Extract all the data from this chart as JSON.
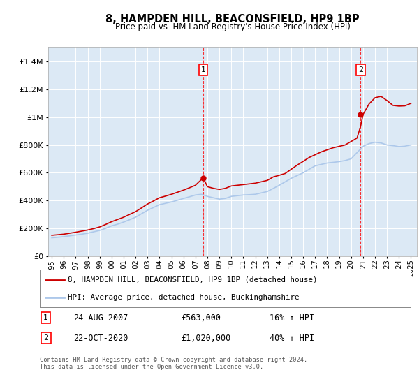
{
  "title": "8, HAMPDEN HILL, BEACONSFIELD, HP9 1BP",
  "subtitle": "Price paid vs. HM Land Registry's House Price Index (HPI)",
  "legend_line1": "8, HAMPDEN HILL, BEACONSFIELD, HP9 1BP (detached house)",
  "legend_line2": "HPI: Average price, detached house, Buckinghamshire",
  "footer": "Contains HM Land Registry data © Crown copyright and database right 2024.\nThis data is licensed under the Open Government Licence v3.0.",
  "sale1_date": "24-AUG-2007",
  "sale1_price": "£563,000",
  "sale1_hpi": "16% ↑ HPI",
  "sale2_date": "22-OCT-2020",
  "sale2_price": "£1,020,000",
  "sale2_hpi": "40% ↑ HPI",
  "sale1_year": 2007.65,
  "sale1_value": 563000,
  "sale2_year": 2020.8,
  "sale2_value": 1020000,
  "hpi_color": "#adc8ea",
  "price_color": "#cc0000",
  "plot_bg": "#dce9f5",
  "ylim": [
    0,
    1500000
  ],
  "xlim_start": 1994.7,
  "xlim_end": 2025.5,
  "hpi_years": [
    1995,
    1995.5,
    1996,
    1996.5,
    1997,
    1997.5,
    1998,
    1998.5,
    1999,
    1999.5,
    2000,
    2000.5,
    2001,
    2001.5,
    2002,
    2002.5,
    2003,
    2003.5,
    2004,
    2004.5,
    2005,
    2005.5,
    2006,
    2006.5,
    2007,
    2007.5,
    2008,
    2008.5,
    2009,
    2009.5,
    2010,
    2010.5,
    2011,
    2011.5,
    2012,
    2012.5,
    2013,
    2013.5,
    2014,
    2014.5,
    2015,
    2015.5,
    2016,
    2016.5,
    2017,
    2017.5,
    2018,
    2018.5,
    2019,
    2019.5,
    2020,
    2020.5,
    2021,
    2021.5,
    2022,
    2022.5,
    2023,
    2023.5,
    2024,
    2024.5,
    2025
  ],
  "hpi_values": [
    132000,
    136000,
    140000,
    146000,
    152000,
    158000,
    165000,
    175000,
    185000,
    200000,
    218000,
    230000,
    245000,
    262000,
    280000,
    305000,
    330000,
    350000,
    370000,
    380000,
    390000,
    402000,
    415000,
    427000,
    440000,
    445000,
    430000,
    420000,
    410000,
    415000,
    430000,
    435000,
    440000,
    442000,
    445000,
    455000,
    465000,
    487000,
    510000,
    535000,
    560000,
    580000,
    600000,
    625000,
    650000,
    660000,
    670000,
    675000,
    680000,
    688000,
    700000,
    745000,
    790000,
    810000,
    820000,
    815000,
    800000,
    795000,
    790000,
    792000,
    800000
  ],
  "price_years": [
    1995,
    1995.5,
    1996,
    1996.5,
    1997,
    1997.5,
    1998,
    1998.5,
    1999,
    1999.5,
    2000,
    2000.5,
    2001,
    2001.5,
    2002,
    2002.5,
    2003,
    2003.5,
    2004,
    2004.5,
    2005,
    2005.5,
    2006,
    2006.5,
    2007,
    2007.3,
    2007.65,
    2008,
    2008.5,
    2009,
    2009.5,
    2010,
    2010.5,
    2011,
    2011.5,
    2012,
    2012.5,
    2013,
    2013.5,
    2014,
    2014.5,
    2015,
    2015.5,
    2016,
    2016.5,
    2017,
    2017.5,
    2018,
    2018.5,
    2019,
    2019.5,
    2020,
    2020.5,
    2020.8,
    2021,
    2021.5,
    2022,
    2022.5,
    2023,
    2023.5,
    2024,
    2024.5,
    2025
  ],
  "price_values": [
    150000,
    154000,
    158000,
    165000,
    172000,
    180000,
    188000,
    198000,
    210000,
    228000,
    248000,
    264000,
    280000,
    300000,
    320000,
    347000,
    375000,
    397000,
    420000,
    432000,
    445000,
    460000,
    475000,
    492000,
    510000,
    535000,
    563000,
    500000,
    488000,
    480000,
    488000,
    505000,
    510000,
    515000,
    520000,
    525000,
    535000,
    545000,
    570000,
    582000,
    595000,
    625000,
    655000,
    682000,
    710000,
    730000,
    750000,
    765000,
    780000,
    790000,
    800000,
    825000,
    850000,
    935000,
    1020000,
    1095000,
    1140000,
    1150000,
    1120000,
    1085000,
    1080000,
    1082000,
    1100000
  ]
}
